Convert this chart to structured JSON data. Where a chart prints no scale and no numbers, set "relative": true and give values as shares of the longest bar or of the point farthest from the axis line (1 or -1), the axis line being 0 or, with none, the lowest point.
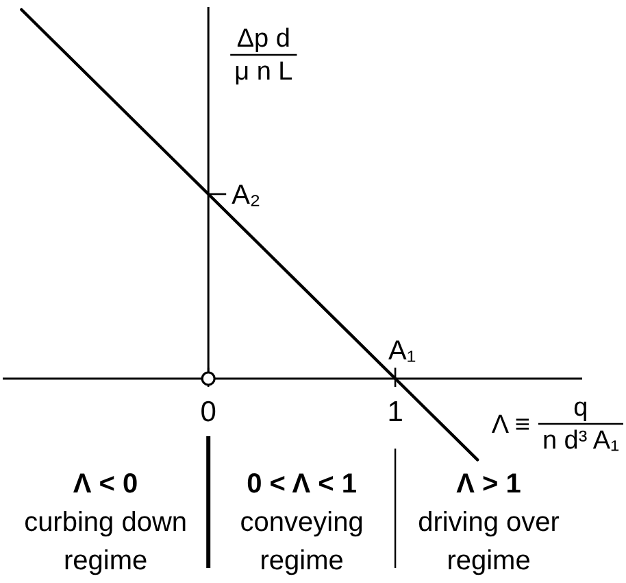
{
  "chart_data": {
    "type": "line",
    "xlabel": "Λ ≡ q\nn d³ A₁",
    "ylabel": "Δp d\nμ n L",
    "x": [
      -1,
      0,
      1,
      1.44
    ],
    "values": [
      1,
      0.5,
      0,
      -0.22
    ],
    "color": "#000000",
    "line_style": "solid",
    "relative": true,
    "xlim": [
      -1.1,
      2.0
    ],
    "xticks": [
      0,
      1
    ],
    "annotations": [
      {
        "text": "A₂",
        "x": 0,
        "y": 0.5
      },
      {
        "text": "A₁",
        "x": 1,
        "y": 0
      },
      "Λ < 0\ncurbing down\nregime",
      "0 < Λ < 1\nconveying\nregime",
      "Λ > 1\ndriving over\nregime"
    ]
  }
}
